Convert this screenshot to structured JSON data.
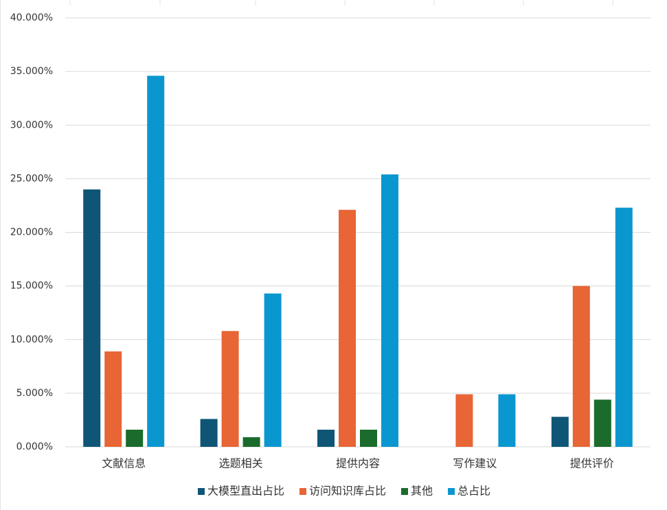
{
  "chart_data": {
    "type": "bar",
    "categories": [
      "文献信息",
      "选题相关",
      "提供内容",
      "写作建议",
      "提供评价"
    ],
    "series": [
      {
        "name": "大模型直出占比",
        "color": "#0f5676",
        "values": [
          24.0,
          2.6,
          1.6,
          0,
          2.8
        ]
      },
      {
        "name": "访问知识库占比",
        "color": "#e86535",
        "values": [
          8.9,
          10.8,
          22.1,
          4.9,
          15.0
        ]
      },
      {
        "name": "其他",
        "color": "#1a6b2c",
        "values": [
          1.6,
          0.9,
          1.6,
          0,
          4.4
        ]
      },
      {
        "name": "总占比",
        "color": "#0a97cf",
        "values": [
          34.6,
          14.3,
          25.4,
          4.9,
          22.3
        ]
      }
    ],
    "ylim": [
      0,
      40
    ],
    "yticks": [
      {
        "value": 0,
        "label": "0.000%"
      },
      {
        "value": 5,
        "label": "5.000%"
      },
      {
        "value": 10,
        "label": "10.000%"
      },
      {
        "value": 15,
        "label": "15.000%"
      },
      {
        "value": 20,
        "label": "20.000%"
      },
      {
        "value": 25,
        "label": "25.000%"
      },
      {
        "value": 30,
        "label": "30.000%"
      },
      {
        "value": 35,
        "label": "35.000%"
      },
      {
        "value": 40,
        "label": "40.000%"
      }
    ],
    "grid": true,
    "legend": "bottom"
  }
}
